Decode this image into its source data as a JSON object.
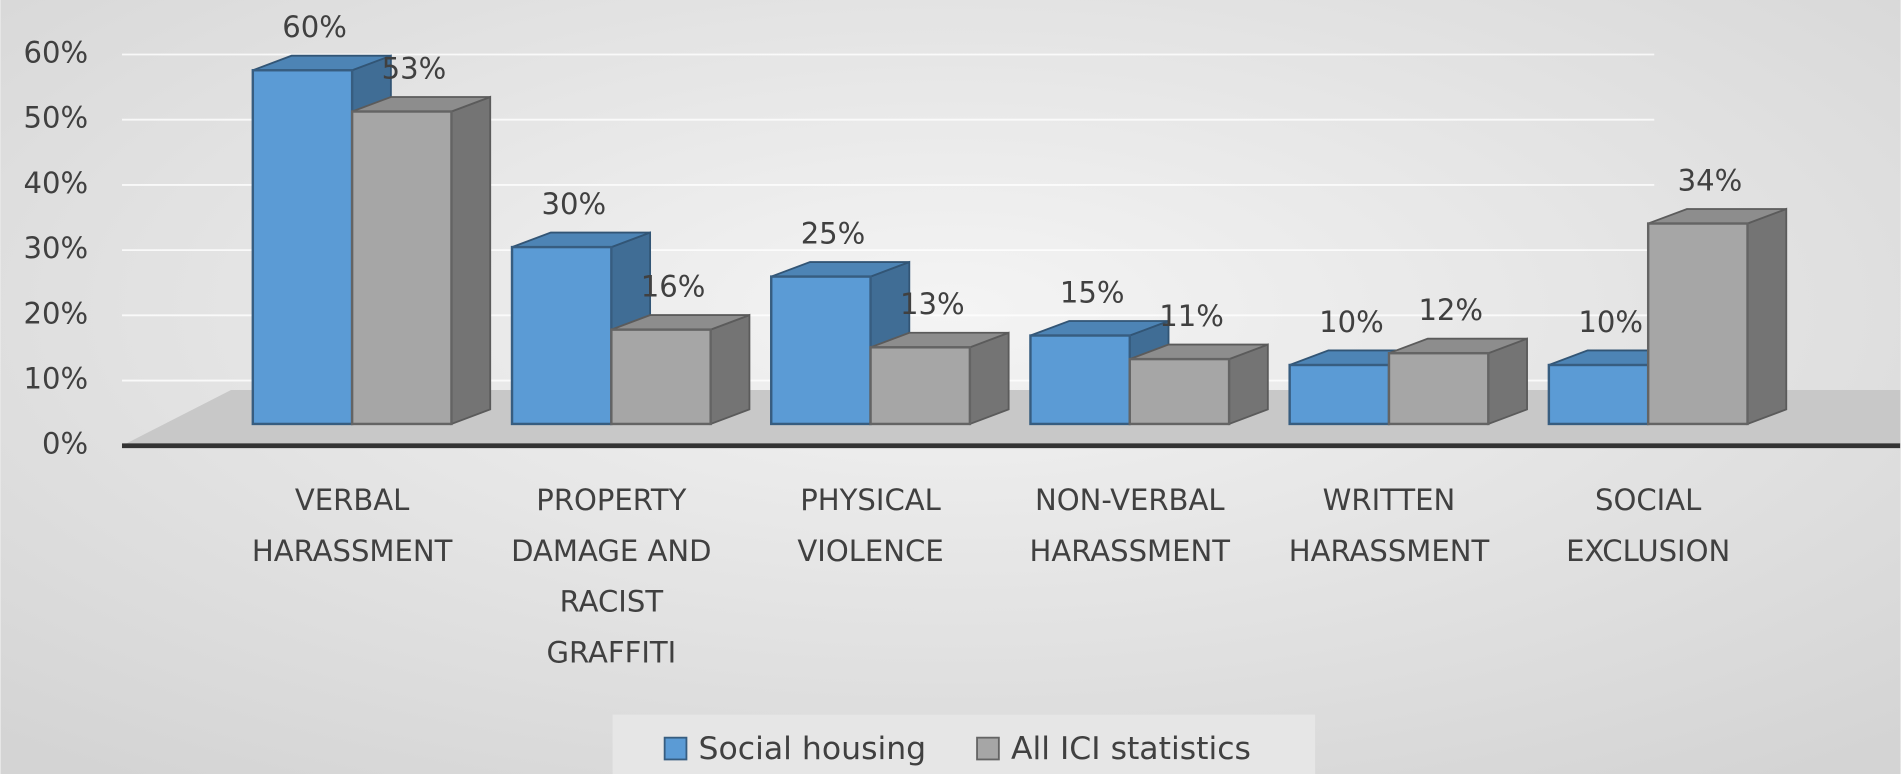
{
  "chart_data": {
    "type": "bar3d",
    "categories": [
      "VERBAL\nHARASSMENT",
      "PROPERTY\nDAMAGE AND\nRACIST\nGRAFFITI",
      "PHYSICAL\nVIOLENCE",
      "NON-VERBAL\nHARASSMENT",
      "WRITTEN\nHARASSMENT",
      "SOCIAL\nEXCLUSION"
    ],
    "series": [
      {
        "name": "Social housing",
        "color": "#5b9bd5",
        "values": [
          60,
          30,
          25,
          15,
          10,
          10
        ],
        "value_labels": [
          "60%",
          "30%",
          "25%",
          "15%",
          "10%",
          "10%"
        ]
      },
      {
        "name": "All ICI statistics",
        "color": "#a6a6a6",
        "values": [
          53,
          16,
          13,
          11,
          12,
          34
        ],
        "value_labels": [
          "53%",
          "16%",
          "13%",
          "11%",
          "12%",
          "34%"
        ]
      }
    ],
    "ylim": [
      0,
      60
    ],
    "yticks": [
      {
        "value": 0,
        "label": "0%"
      },
      {
        "value": 10,
        "label": "10%"
      },
      {
        "value": 20,
        "label": "20%"
      },
      {
        "value": 30,
        "label": "30%"
      },
      {
        "value": 40,
        "label": "40%"
      },
      {
        "value": 50,
        "label": "50%"
      },
      {
        "value": 60,
        "label": "60%"
      }
    ],
    "grid": true,
    "legend": "bottom"
  }
}
